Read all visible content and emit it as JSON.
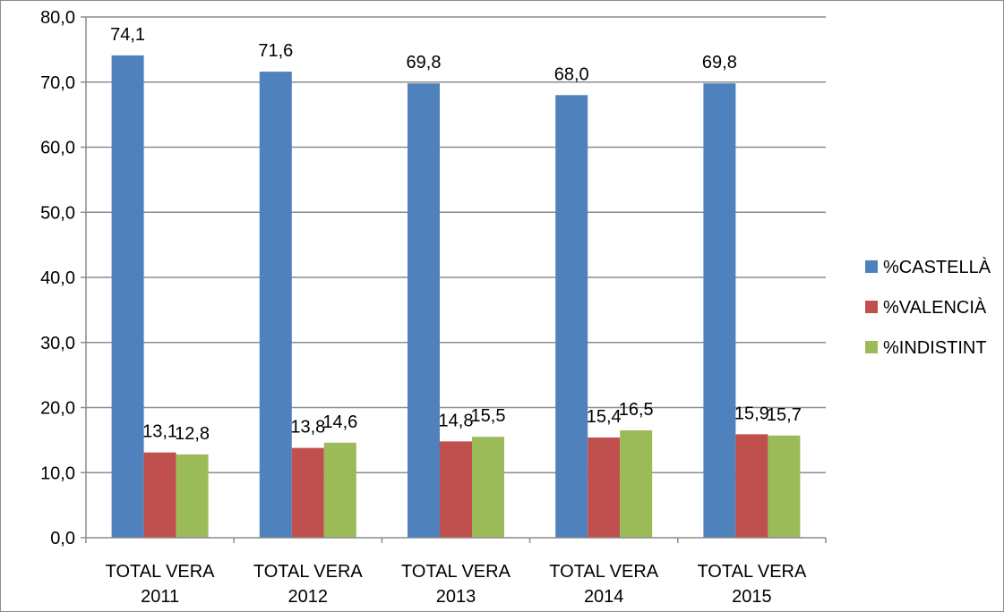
{
  "chart_data": {
    "type": "bar",
    "title": "",
    "xlabel": "",
    "ylabel": "",
    "categories": [
      [
        "TOTAL VERA",
        "2011"
      ],
      [
        "TOTAL VERA",
        "2012"
      ],
      [
        "TOTAL VERA",
        "2013"
      ],
      [
        "TOTAL VERA",
        "2014"
      ],
      [
        "TOTAL VERA",
        "2015"
      ]
    ],
    "series": [
      {
        "name": "%CASTELLÀ",
        "color": "#4F81BD",
        "values": [
          74.1,
          71.6,
          69.8,
          68.0,
          69.8
        ],
        "labels": [
          "74,1",
          "71,6",
          "69,8",
          "68,0",
          "69,8"
        ]
      },
      {
        "name": "%VALENCIÀ",
        "color": "#C0504D",
        "values": [
          13.1,
          13.8,
          14.8,
          15.4,
          15.9
        ],
        "labels": [
          "13,1",
          "13,8",
          "14,8",
          "15,4",
          "15,9"
        ]
      },
      {
        "name": "%INDISTINT",
        "color": "#9BBB59",
        "values": [
          12.8,
          14.6,
          15.5,
          16.5,
          15.7
        ],
        "labels": [
          "12,8",
          "14,6",
          "15,5",
          "16,5",
          "15,7"
        ]
      }
    ],
    "ylim": [
      0,
      80
    ],
    "yticks": [
      0,
      10,
      20,
      30,
      40,
      50,
      60,
      70,
      80
    ],
    "ytick_labels": [
      "0,0",
      "10,0",
      "20,0",
      "30,0",
      "40,0",
      "50,0",
      "60,0",
      "70,0",
      "80,0"
    ],
    "grid": true,
    "legend_position": "right"
  }
}
